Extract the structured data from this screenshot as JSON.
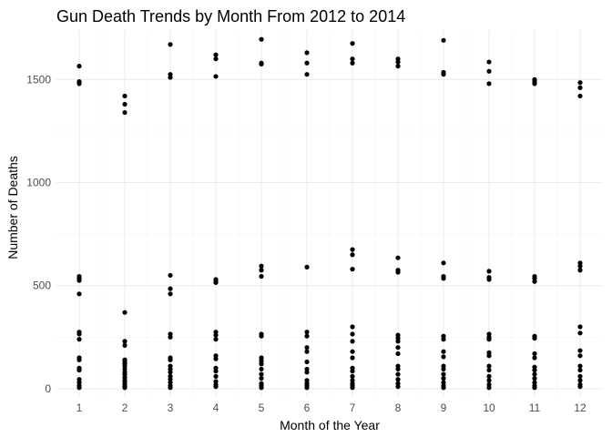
{
  "chart_data": {
    "type": "scatter",
    "title": "Gun Death Trends by Month From 2012 to 2014",
    "xlabel": "Month of the Year",
    "ylabel": "Number of Deaths",
    "x_ticks": [
      "1",
      "2",
      "3",
      "4",
      "5",
      "6",
      "7",
      "8",
      "9",
      "10",
      "11",
      "12"
    ],
    "y_ticks": [
      0,
      500,
      1000,
      1500
    ],
    "xlim": [
      0.5,
      12.5
    ],
    "ylim": [
      -40,
      1740
    ],
    "grid": true,
    "legend": "none",
    "point_color": "#000000",
    "points": [
      [
        1,
        1565
      ],
      [
        1,
        1490
      ],
      [
        1,
        1480
      ],
      [
        1,
        545
      ],
      [
        1,
        535
      ],
      [
        1,
        525
      ],
      [
        1,
        460
      ],
      [
        1,
        275
      ],
      [
        1,
        265
      ],
      [
        1,
        240
      ],
      [
        1,
        150
      ],
      [
        1,
        140
      ],
      [
        1,
        100
      ],
      [
        1,
        90
      ],
      [
        1,
        45
      ],
      [
        1,
        30
      ],
      [
        1,
        15
      ],
      [
        1,
        5
      ],
      [
        2,
        1420
      ],
      [
        2,
        1380
      ],
      [
        2,
        1340
      ],
      [
        2,
        370
      ],
      [
        2,
        230
      ],
      [
        2,
        210
      ],
      [
        2,
        140
      ],
      [
        2,
        130
      ],
      [
        2,
        120
      ],
      [
        2,
        110
      ],
      [
        2,
        95
      ],
      [
        2,
        80
      ],
      [
        2,
        70
      ],
      [
        2,
        55
      ],
      [
        2,
        40
      ],
      [
        2,
        30
      ],
      [
        2,
        20
      ],
      [
        2,
        10
      ],
      [
        2,
        5
      ],
      [
        3,
        1670
      ],
      [
        3,
        1525
      ],
      [
        3,
        1510
      ],
      [
        3,
        550
      ],
      [
        3,
        485
      ],
      [
        3,
        460
      ],
      [
        3,
        265
      ],
      [
        3,
        250
      ],
      [
        3,
        150
      ],
      [
        3,
        140
      ],
      [
        3,
        110
      ],
      [
        3,
        95
      ],
      [
        3,
        80
      ],
      [
        3,
        60
      ],
      [
        3,
        45
      ],
      [
        3,
        30
      ],
      [
        3,
        15
      ],
      [
        3,
        5
      ],
      [
        4,
        1620
      ],
      [
        4,
        1600
      ],
      [
        4,
        1515
      ],
      [
        4,
        530
      ],
      [
        4,
        520
      ],
      [
        4,
        515
      ],
      [
        4,
        275
      ],
      [
        4,
        260
      ],
      [
        4,
        240
      ],
      [
        4,
        160
      ],
      [
        4,
        145
      ],
      [
        4,
        100
      ],
      [
        4,
        85
      ],
      [
        4,
        60
      ],
      [
        4,
        35
      ],
      [
        4,
        20
      ],
      [
        4,
        10
      ],
      [
        5,
        1695
      ],
      [
        5,
        1580
      ],
      [
        5,
        1575
      ],
      [
        5,
        595
      ],
      [
        5,
        575
      ],
      [
        5,
        545
      ],
      [
        5,
        265
      ],
      [
        5,
        255
      ],
      [
        5,
        150
      ],
      [
        5,
        135
      ],
      [
        5,
        120
      ],
      [
        5,
        95
      ],
      [
        5,
        70
      ],
      [
        5,
        50
      ],
      [
        5,
        25
      ],
      [
        5,
        15
      ],
      [
        5,
        5
      ],
      [
        6,
        1630
      ],
      [
        6,
        1580
      ],
      [
        6,
        1525
      ],
      [
        6,
        590
      ],
      [
        6,
        275
      ],
      [
        6,
        255
      ],
      [
        6,
        200
      ],
      [
        6,
        180
      ],
      [
        6,
        130
      ],
      [
        6,
        95
      ],
      [
        6,
        80
      ],
      [
        6,
        40
      ],
      [
        6,
        25
      ],
      [
        6,
        15
      ],
      [
        6,
        5
      ],
      [
        7,
        1675
      ],
      [
        7,
        1600
      ],
      [
        7,
        1580
      ],
      [
        7,
        675
      ],
      [
        7,
        650
      ],
      [
        7,
        580
      ],
      [
        7,
        300
      ],
      [
        7,
        265
      ],
      [
        7,
        230
      ],
      [
        7,
        180
      ],
      [
        7,
        150
      ],
      [
        7,
        100
      ],
      [
        7,
        85
      ],
      [
        7,
        60
      ],
      [
        7,
        40
      ],
      [
        7,
        25
      ],
      [
        7,
        15
      ],
      [
        7,
        5
      ],
      [
        8,
        1600
      ],
      [
        8,
        1585
      ],
      [
        8,
        1565
      ],
      [
        8,
        635
      ],
      [
        8,
        575
      ],
      [
        8,
        565
      ],
      [
        8,
        260
      ],
      [
        8,
        245
      ],
      [
        8,
        230
      ],
      [
        8,
        200
      ],
      [
        8,
        170
      ],
      [
        8,
        110
      ],
      [
        8,
        95
      ],
      [
        8,
        70
      ],
      [
        8,
        45
      ],
      [
        8,
        25
      ],
      [
        8,
        10
      ],
      [
        9,
        1690
      ],
      [
        9,
        1535
      ],
      [
        9,
        1525
      ],
      [
        9,
        610
      ],
      [
        9,
        545
      ],
      [
        9,
        535
      ],
      [
        9,
        255
      ],
      [
        9,
        240
      ],
      [
        9,
        180
      ],
      [
        9,
        155
      ],
      [
        9,
        110
      ],
      [
        9,
        95
      ],
      [
        9,
        70
      ],
      [
        9,
        50
      ],
      [
        9,
        30
      ],
      [
        9,
        15
      ],
      [
        9,
        5
      ],
      [
        10,
        1585
      ],
      [
        10,
        1540
      ],
      [
        10,
        1480
      ],
      [
        10,
        570
      ],
      [
        10,
        540
      ],
      [
        10,
        530
      ],
      [
        10,
        265
      ],
      [
        10,
        250
      ],
      [
        10,
        240
      ],
      [
        10,
        175
      ],
      [
        10,
        160
      ],
      [
        10,
        110
      ],
      [
        10,
        90
      ],
      [
        10,
        60
      ],
      [
        10,
        40
      ],
      [
        10,
        20
      ],
      [
        10,
        5
      ],
      [
        11,
        1500
      ],
      [
        11,
        1490
      ],
      [
        11,
        1480
      ],
      [
        11,
        545
      ],
      [
        11,
        535
      ],
      [
        11,
        520
      ],
      [
        11,
        255
      ],
      [
        11,
        245
      ],
      [
        11,
        170
      ],
      [
        11,
        150
      ],
      [
        11,
        105
      ],
      [
        11,
        90
      ],
      [
        11,
        70
      ],
      [
        11,
        50
      ],
      [
        11,
        30
      ],
      [
        11,
        15
      ],
      [
        11,
        5
      ],
      [
        12,
        1485
      ],
      [
        12,
        1460
      ],
      [
        12,
        1420
      ],
      [
        12,
        610
      ],
      [
        12,
        595
      ],
      [
        12,
        575
      ],
      [
        12,
        300
      ],
      [
        12,
        270
      ],
      [
        12,
        185
      ],
      [
        12,
        160
      ],
      [
        12,
        110
      ],
      [
        12,
        90
      ],
      [
        12,
        60
      ],
      [
        12,
        40
      ],
      [
        12,
        20
      ],
      [
        12,
        10
      ]
    ]
  }
}
